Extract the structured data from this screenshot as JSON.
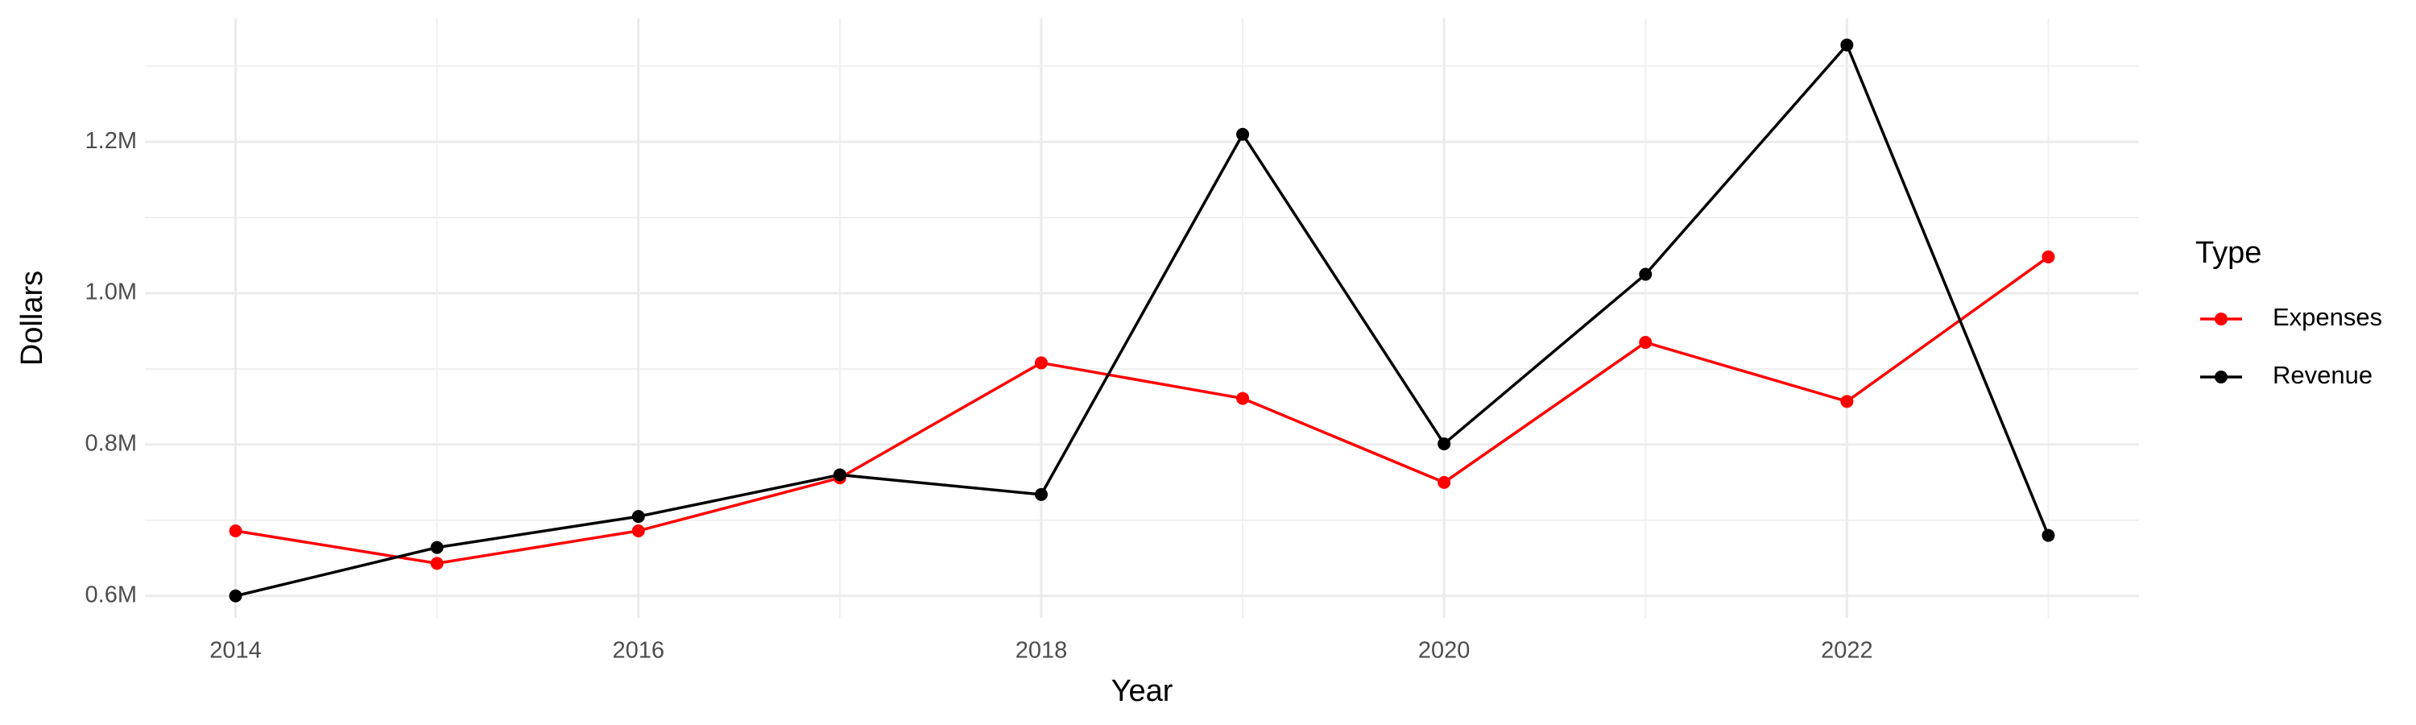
{
  "chart_data": {
    "type": "line",
    "x_label": "Year",
    "y_label": "Dollars",
    "legend_title": "Type",
    "legend": "right",
    "grid": true,
    "x": [
      2014,
      2015,
      2016,
      2017,
      2018,
      2019,
      2020,
      2021,
      2022,
      2023
    ],
    "series": [
      {
        "name": "Expenses",
        "color": "#ff0000",
        "values": [
          686000,
          643000,
          686000,
          756000,
          908000,
          861000,
          750000,
          935000,
          857000,
          1048000
        ]
      },
      {
        "name": "Revenue",
        "color": "#000000",
        "values": [
          600000,
          664000,
          705000,
          760000,
          734000,
          1210000,
          801000,
          1025000,
          1328000,
          680000
        ]
      }
    ],
    "xlim": [
      2013.55,
      2023.45
    ],
    "xticks": [
      2014,
      2016,
      2018,
      2020,
      2022
    ],
    "ylim": [
      571000,
      1363000
    ],
    "yticks": [
      {
        "value": 600000,
        "label": "0.6M"
      },
      {
        "value": 800000,
        "label": "0.8M"
      },
      {
        "value": 1000000,
        "label": "1.0M"
      },
      {
        "value": 1200000,
        "label": "1.2M"
      }
    ]
  }
}
